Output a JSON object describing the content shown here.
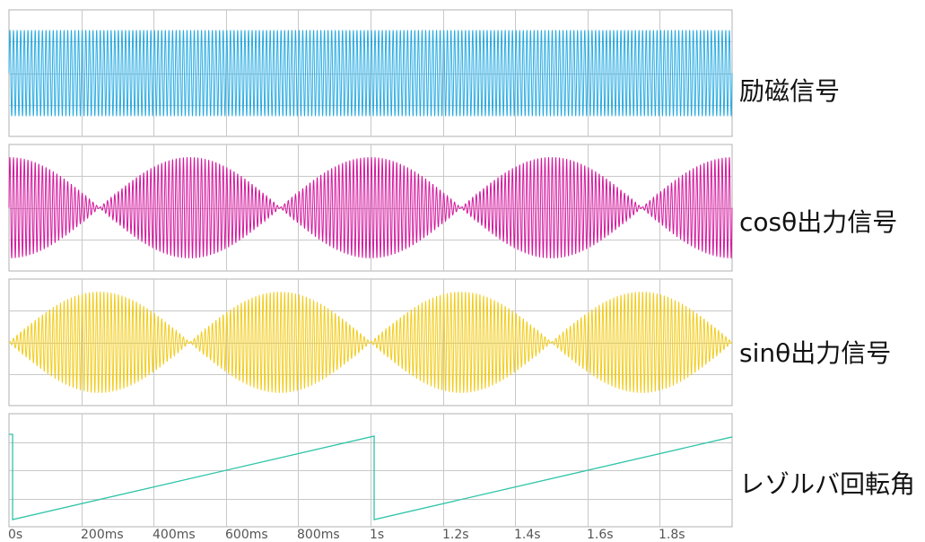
{
  "chart_data": {
    "type": "line",
    "x_range_s": [
      0,
      2
    ],
    "xticks": [
      {
        "value": 0,
        "label": "0s"
      },
      {
        "value": 0.2,
        "label": "200ms"
      },
      {
        "value": 0.4,
        "label": "400ms"
      },
      {
        "value": 0.6,
        "label": "600ms"
      },
      {
        "value": 0.8,
        "label": "800ms"
      },
      {
        "value": 1.0,
        "label": "1s"
      },
      {
        "value": 1.2,
        "label": "1.2s"
      },
      {
        "value": 1.4,
        "label": "1.4s"
      },
      {
        "value": 1.6,
        "label": "1.6s"
      },
      {
        "value": 1.8,
        "label": "1.8s"
      }
    ],
    "grid": true,
    "panels": [
      {
        "label": "励磁信号",
        "color": "#29abe2",
        "waveform": "carrier",
        "carrier_cycles_per_second": 100,
        "amplitude": 1
      },
      {
        "label": "cosθ出力信号",
        "color": "#d4189e",
        "waveform": "carrier_times_abs_cos_angle",
        "carrier_cycles_per_second": 100,
        "rotations_per_second": 1,
        "amplitude": 1
      },
      {
        "label": "sinθ出力信号",
        "color": "#f2cc1b",
        "waveform": "carrier_times_abs_sin_angle",
        "carrier_cycles_per_second": 100,
        "rotations_per_second": 1,
        "amplitude": 1
      },
      {
        "label": "レゾルバ回転角",
        "color": "#2ec4a8",
        "waveform": "sawtooth",
        "period_s": 1,
        "reset_times_s": [
          0.01,
          1.01
        ]
      }
    ]
  }
}
